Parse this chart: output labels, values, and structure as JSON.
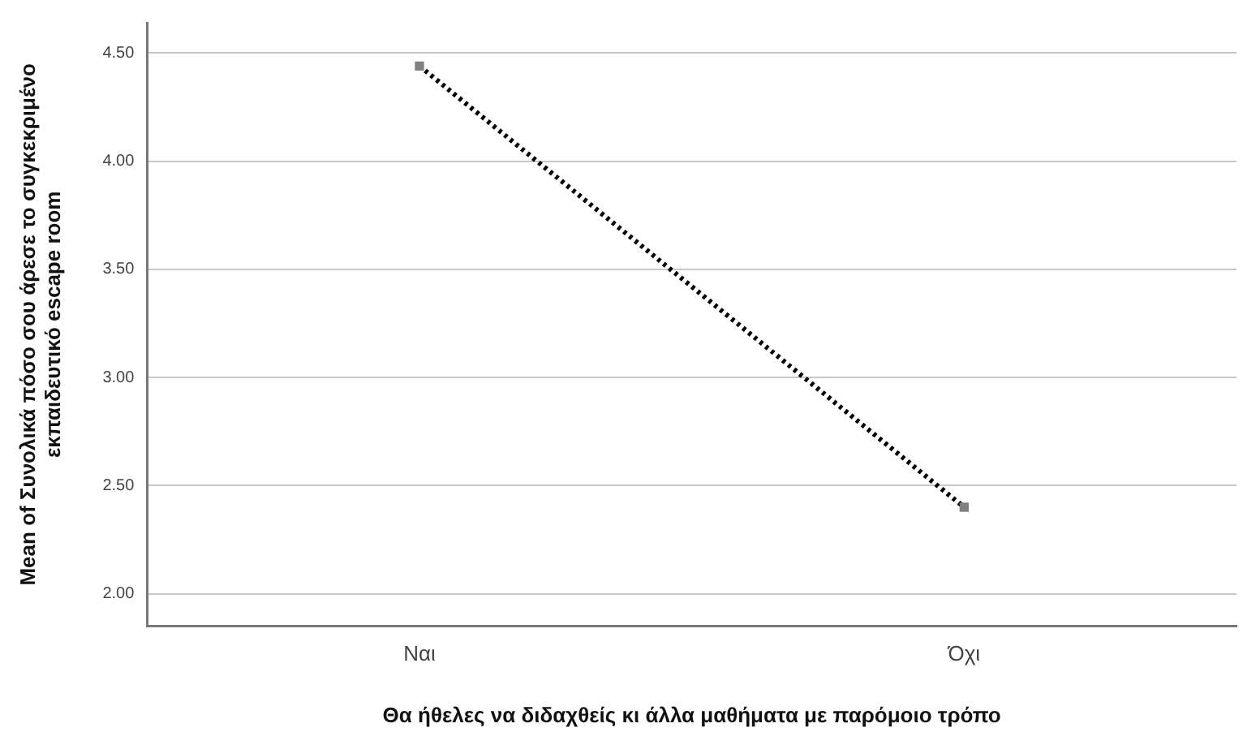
{
  "chart_data": {
    "type": "line",
    "xlabel": "Θα ήθελες να διδαχθείς κι άλλα μαθήματα με παρόμοιο τρόπο",
    "ylabel": "Mean of Συνολικά πόσο σου άρεσε το συγκεκριμένο εκπαιδευτικό escape room",
    "categories": [
      "Ναι",
      "Όχι"
    ],
    "series": [
      {
        "color": "#000000",
        "values": [
          4.44,
          2.4
        ]
      }
    ],
    "ylim": [
      1.85,
      4.64
    ],
    "yticks": [
      {
        "value": 2,
        "label": "2.00"
      },
      {
        "value": 2.5,
        "label": "2.50"
      },
      {
        "value": 3,
        "label": "3.00"
      },
      {
        "value": 3.5,
        "label": "3.50"
      },
      {
        "value": 4,
        "label": "4.00"
      },
      {
        "value": 4.5,
        "label": "4.50"
      }
    ],
    "grid": "y",
    "legend": false,
    "marker": "square",
    "line_style": "dotted"
  }
}
